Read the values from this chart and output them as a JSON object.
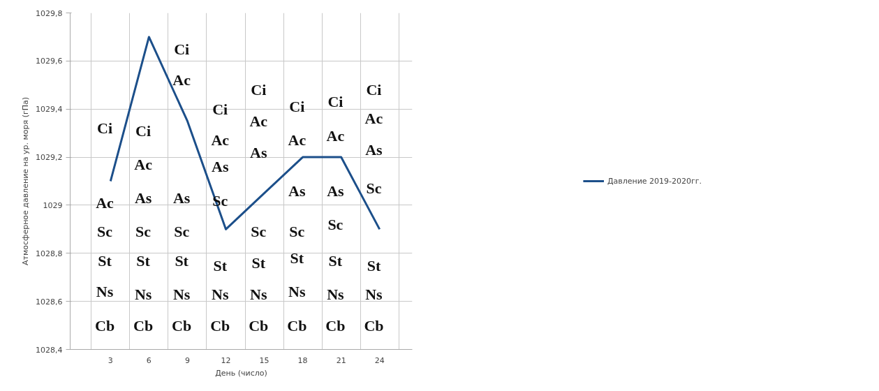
{
  "chart_data": {
    "type": "line",
    "xlabel": "День (число)",
    "ylabel": "Атмосферное давление на ур. моря (гПа)",
    "categories": [
      "3",
      "6",
      "9",
      "12",
      "15",
      "18",
      "21",
      "24"
    ],
    "series": [
      {
        "name": "Давление 2019-2020гг.",
        "color": "#1c4f8a",
        "values": [
          1029.1,
          1029.7,
          1029.35,
          1028.9,
          1029.05,
          1029.2,
          1029.2,
          1028.9
        ]
      }
    ],
    "ylim": [
      1028.4,
      1029.8
    ],
    "yticks": [
      {
        "value": 1028.4,
        "label": "1028,4"
      },
      {
        "value": 1028.6,
        "label": "1028,6"
      },
      {
        "value": 1028.8,
        "label": "1028,8"
      },
      {
        "value": 1029,
        "label": "1029"
      },
      {
        "value": 1029.2,
        "label": "1029,2"
      },
      {
        "value": 1029.4,
        "label": "1029,4"
      },
      {
        "value": 1029.6,
        "label": "1029,6"
      },
      {
        "value": 1029.8,
        "label": "1029,8"
      }
    ],
    "grid": true,
    "legend": "right",
    "marker": "none",
    "line_style": "solid",
    "annotations": [
      "Ci",
      "Ac",
      "Sc",
      "St",
      "Ns",
      "Cb",
      "Ci",
      "Ac",
      "As",
      "Sc",
      "St",
      "Ns",
      "Cb",
      "Ci",
      "Ac",
      "As",
      "Sc",
      "St",
      "Ns",
      "Cb",
      "Ci",
      "Ac",
      "As",
      "Sc",
      "St",
      "Ns",
      "Cb",
      "Ci",
      "Ac",
      "As",
      "Sc",
      "St",
      "Ns",
      "Cb",
      "Ci",
      "Ac",
      "As",
      "Sc",
      "St",
      "Ns",
      "Cb",
      "Ci",
      "Ac",
      "As",
      "Sc",
      "St",
      "Ns",
      "Cb",
      "Ci",
      "Ac",
      "As",
      "Sc",
      "St",
      "Ns",
      "Cb"
    ]
  }
}
